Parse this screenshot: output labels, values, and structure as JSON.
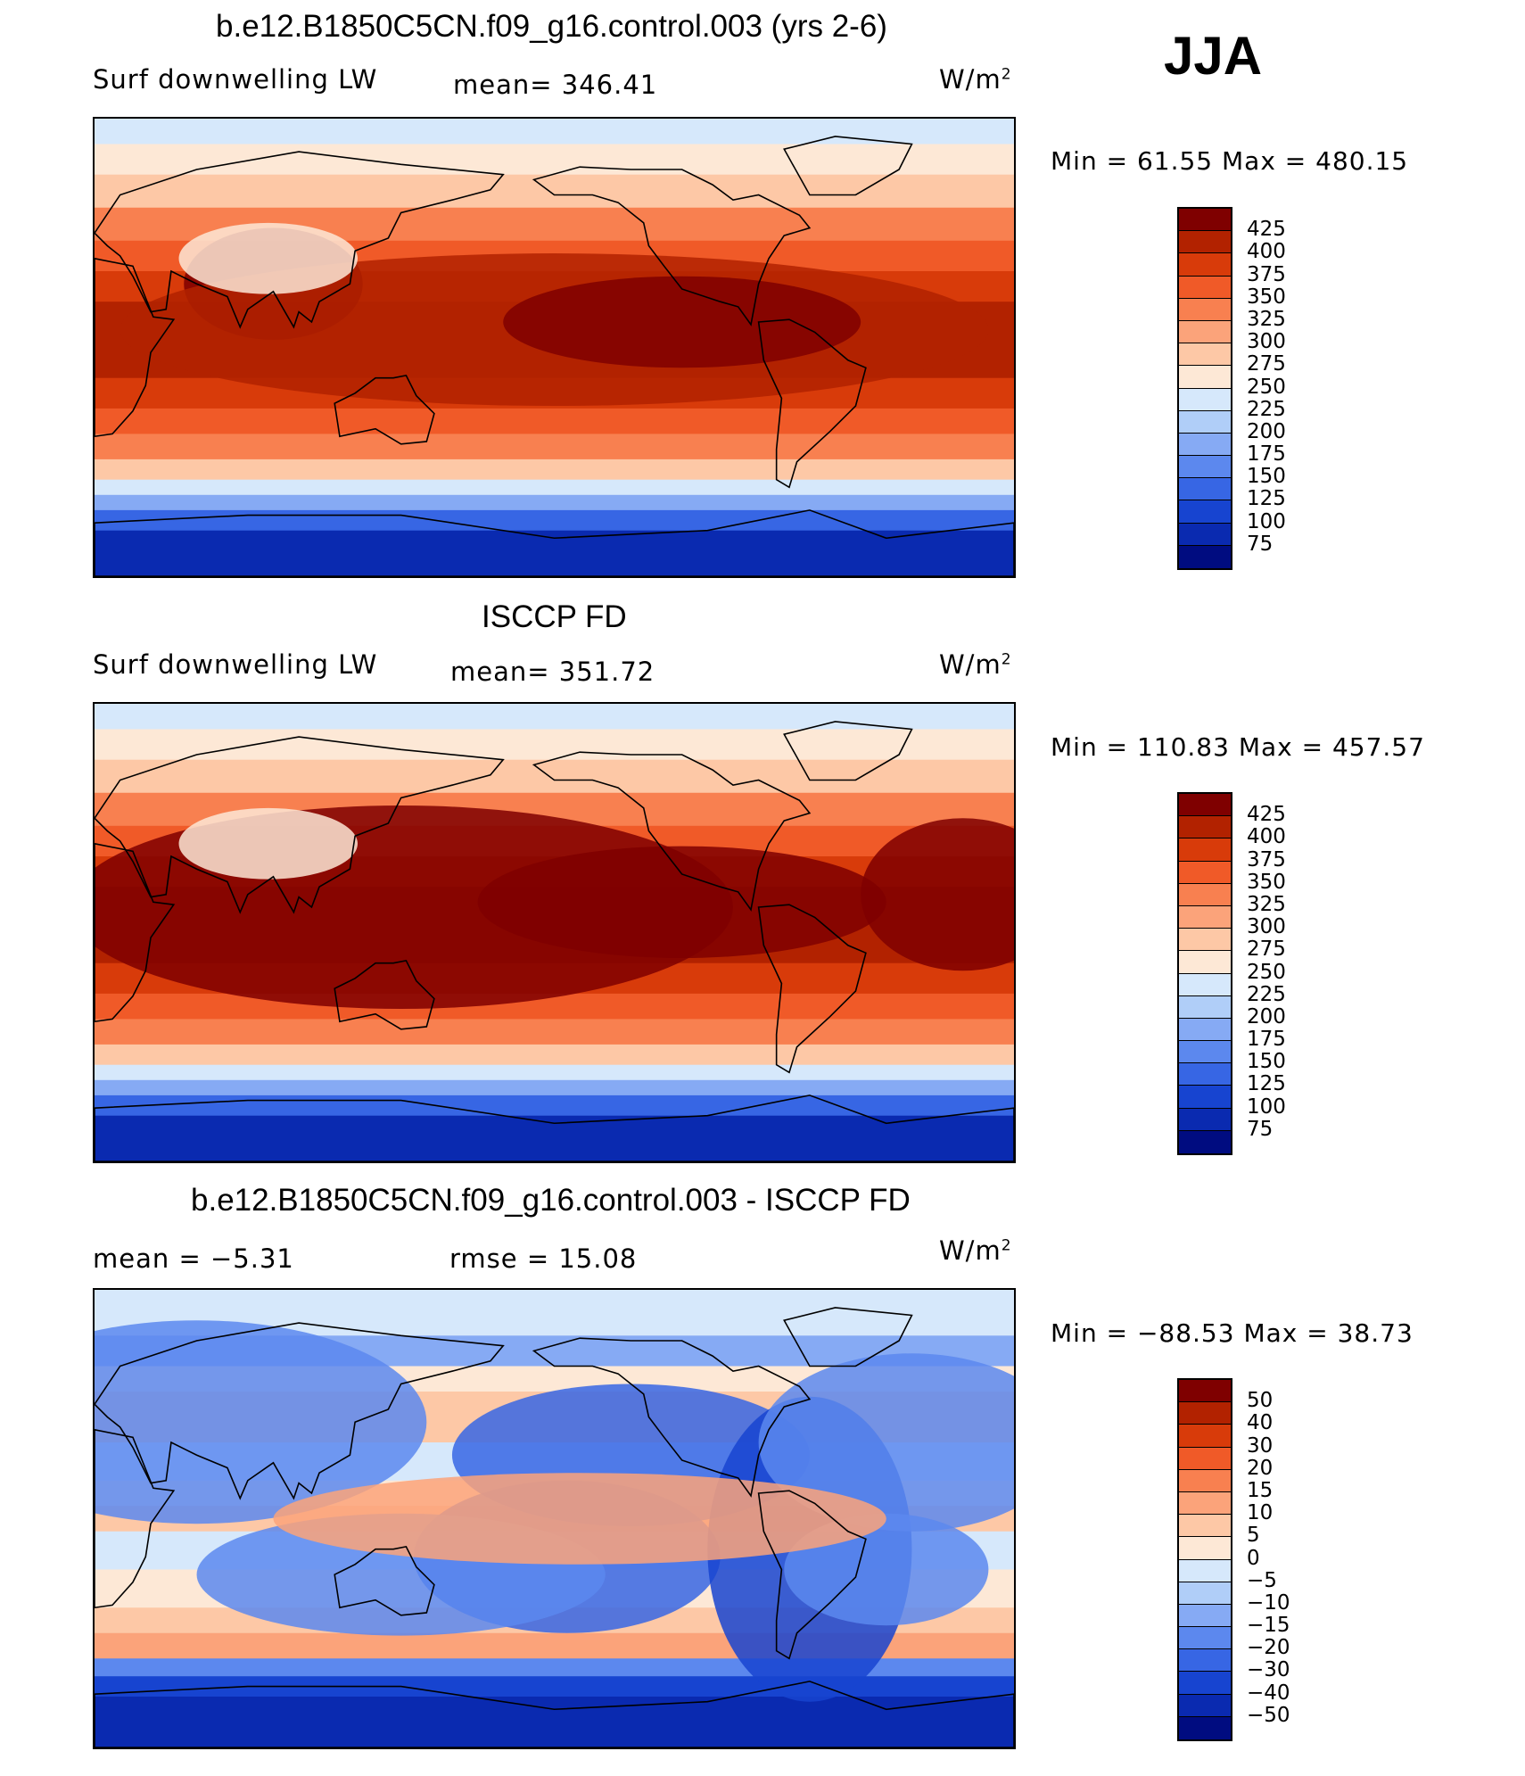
{
  "season": "JJA",
  "units_label": "W/m",
  "units_sup": "2",
  "panels": [
    {
      "title": "b.e12.B1850C5CN.f09_g16.control.003 (yrs 2-6)",
      "left_label": "Surf  downwelling  LW",
      "stat_label": "mean=  346.41",
      "minmax": "Min  =    61.55  Max  =  480.15",
      "colorbar_levels": [
        "425",
        "400",
        "375",
        "350",
        "325",
        "300",
        "275",
        "250",
        "225",
        "200",
        "175",
        "150",
        "125",
        "100",
        "75"
      ]
    },
    {
      "title": "ISCCP FD",
      "left_label": "Surf  downwelling  LW",
      "stat_label": "mean=  351.72",
      "minmax": "Min  =  110.83  Max  =  457.57",
      "colorbar_levels": [
        "425",
        "400",
        "375",
        "350",
        "325",
        "300",
        "275",
        "250",
        "225",
        "200",
        "175",
        "150",
        "125",
        "100",
        "75"
      ]
    },
    {
      "title": "b.e12.B1850C5CN.f09_g16.control.003 - ISCCP FD",
      "left_label": "mean  =    −5.31",
      "stat_label": "rmse  =    15.08",
      "minmax": "Min  =  −88.53  Max  =    38.73",
      "colorbar_levels": [
        "50",
        "40",
        "30",
        "20",
        "15",
        "10",
        "5",
        "0",
        "−5",
        "−10",
        "−15",
        "−20",
        "−30",
        "−40",
        "−50"
      ]
    }
  ],
  "colors": {
    "absolute_scale": [
      "#7f0000",
      "#b22200",
      "#d83b0a",
      "#f05a28",
      "#f88050",
      "#fba37a",
      "#fdc8a6",
      "#fde8d6",
      "#d6e8fb",
      "#b0cef8",
      "#86aaf4",
      "#5c88ee",
      "#3766e4",
      "#1744d0",
      "#0a2ab0",
      "#000c80"
    ],
    "difference_scale": [
      "#7f0000",
      "#b22200",
      "#d83b0a",
      "#f05a28",
      "#f88050",
      "#fba37a",
      "#fdc8a6",
      "#fde8d6",
      "#d6e8fb",
      "#b0cef8",
      "#86aaf4",
      "#5c88ee",
      "#3766e4",
      "#1744d0",
      "#0a2ab0",
      "#000c80"
    ]
  }
}
